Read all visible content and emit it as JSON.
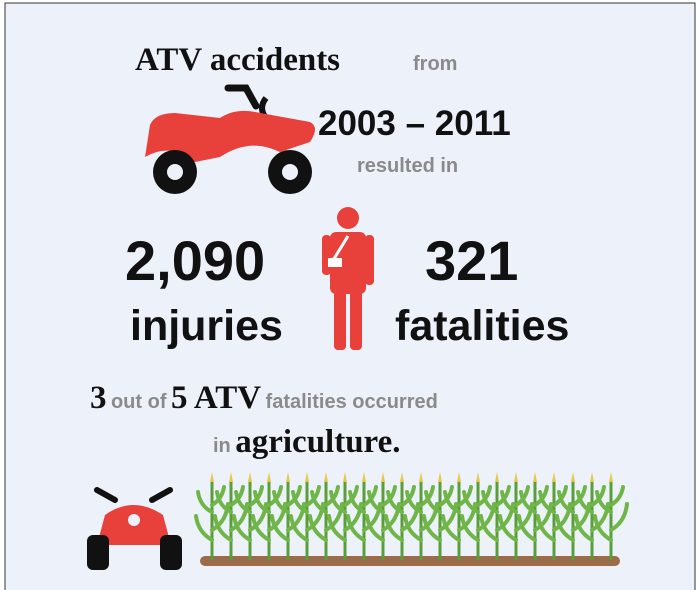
{
  "headline": {
    "subject": "ATV accidents",
    "from": "from",
    "period": "2003 – 2011",
    "resulted": "resulted in"
  },
  "stats": {
    "injuries_value": "2,090",
    "injuries_label": "injuries",
    "fatalities_value": "321",
    "fatalities_label": "fatalities"
  },
  "agriculture": {
    "count": "3",
    "out_of": "out of",
    "total": "5 ATV",
    "fatalities": "fatalities occurred",
    "in": "in",
    "sector": "agriculture."
  }
}
